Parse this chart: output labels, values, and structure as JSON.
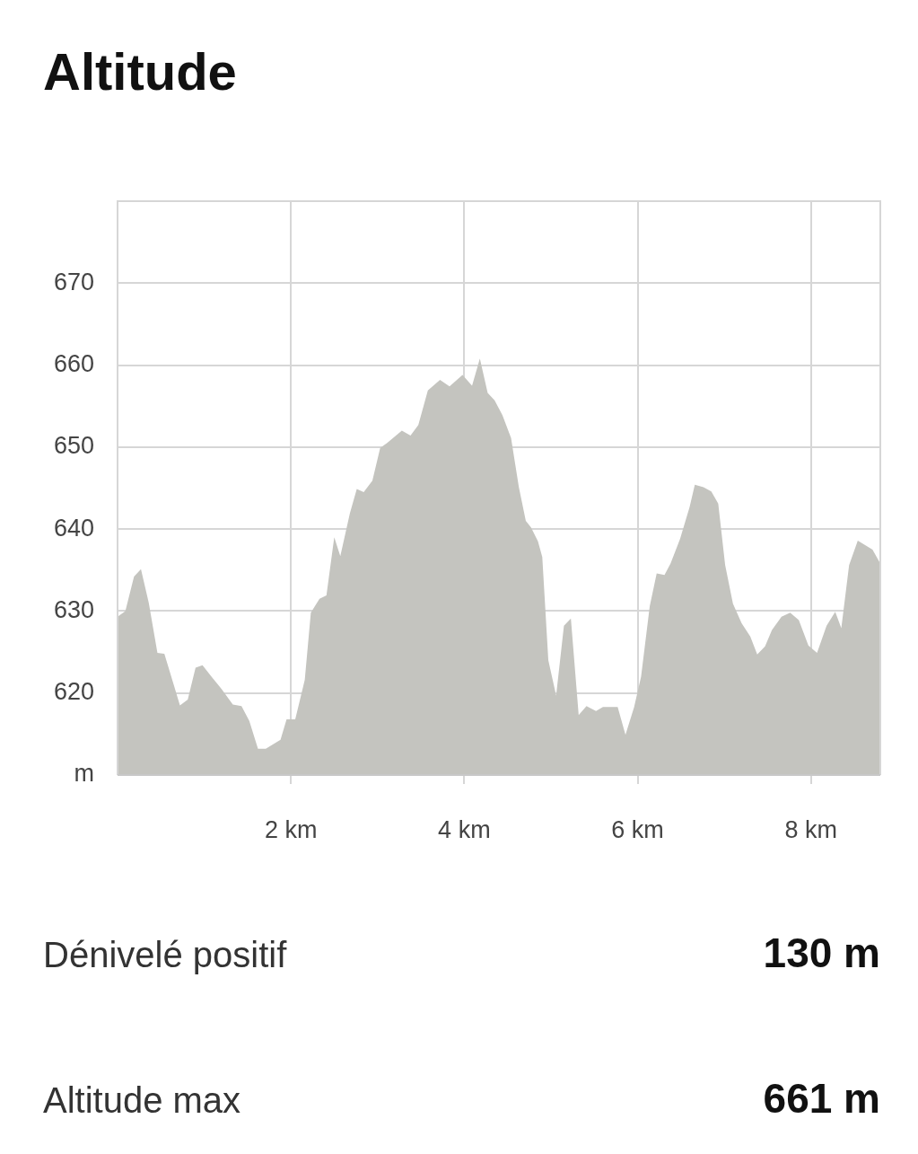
{
  "chart_data": {
    "type": "area",
    "title": "Altitude",
    "x": [
      0,
      0.09,
      0.19,
      0.27,
      0.36,
      0.46,
      0.54,
      0.72,
      0.81,
      0.9,
      0.98,
      1.09,
      1.2,
      1.33,
      1.43,
      1.52,
      1.62,
      1.71,
      1.88,
      1.95,
      2.05,
      2.16,
      2.23,
      2.33,
      2.41,
      2.5,
      2.57,
      2.68,
      2.76,
      2.84,
      2.94,
      3.03,
      3.11,
      3.28,
      3.38,
      3.47,
      3.58,
      3.72,
      3.83,
      3.98,
      4.09,
      4.18,
      4.27,
      4.35,
      4.44,
      4.54,
      4.63,
      4.71,
      4.77,
      4.85,
      4.9,
      4.97,
      5.06,
      5.15,
      5.23,
      5.32,
      5.41,
      5.52,
      5.6,
      5.77,
      5.86,
      5.96,
      6.04,
      6.14,
      6.22,
      6.31,
      6.38,
      6.49,
      6.6,
      6.66,
      6.76,
      6.85,
      6.93,
      7.01,
      7.1,
      7.2,
      7.3,
      7.38,
      7.47,
      7.55,
      7.66,
      7.76,
      7.86,
      7.97,
      8.07,
      8.18,
      8.28,
      8.35,
      8.44,
      8.54,
      8.71,
      8.8
    ],
    "values": [
      629.3,
      630,
      634.2,
      635.1,
      631,
      624.9,
      624.8,
      618.5,
      619.2,
      623.1,
      623.4,
      621.9,
      620.5,
      618.6,
      618.4,
      616.6,
      613.2,
      613.2,
      614.3,
      616.8,
      616.8,
      621.6,
      629.8,
      631.5,
      631.9,
      639,
      636.7,
      641.9,
      644.9,
      644.5,
      645.9,
      649.9,
      650.5,
      652,
      651.4,
      652.7,
      656.9,
      658.2,
      657.4,
      658.8,
      657.5,
      660.8,
      656.6,
      655.7,
      653.9,
      651.1,
      645.1,
      641,
      640.2,
      638.5,
      636.6,
      624,
      619.7,
      628.2,
      629.1,
      617.3,
      618.4,
      617.8,
      618.3,
      618.3,
      614.9,
      618.3,
      622,
      630.6,
      634.6,
      634.4,
      635.8,
      638.8,
      642.7,
      645.4,
      645.1,
      644.6,
      643.1,
      635.6,
      630.9,
      628.5,
      626.9,
      624.7,
      625.7,
      627.7,
      629.3,
      629.8,
      628.9,
      625.8,
      624.9,
      628.2,
      629.9,
      627.9,
      635.6,
      638.6,
      637.5,
      635.8
    ],
    "color": "#c4c4bf",
    "xlim": [
      0,
      8.8
    ],
    "xticks": [
      {
        "value": 2,
        "label": "2 km"
      },
      {
        "value": 4,
        "label": "4 km"
      },
      {
        "value": 6,
        "label": "6 km"
      },
      {
        "value": 8,
        "label": "8 km"
      }
    ],
    "ylim": [
      610,
      680
    ],
    "yticks": [
      {
        "value": 610,
        "label": "m"
      },
      620,
      630,
      640,
      650,
      660,
      670
    ],
    "grid": true,
    "annotations": [
      "Dénivelé positif",
      "130 m",
      "Altitude max",
      "661 m"
    ]
  }
}
